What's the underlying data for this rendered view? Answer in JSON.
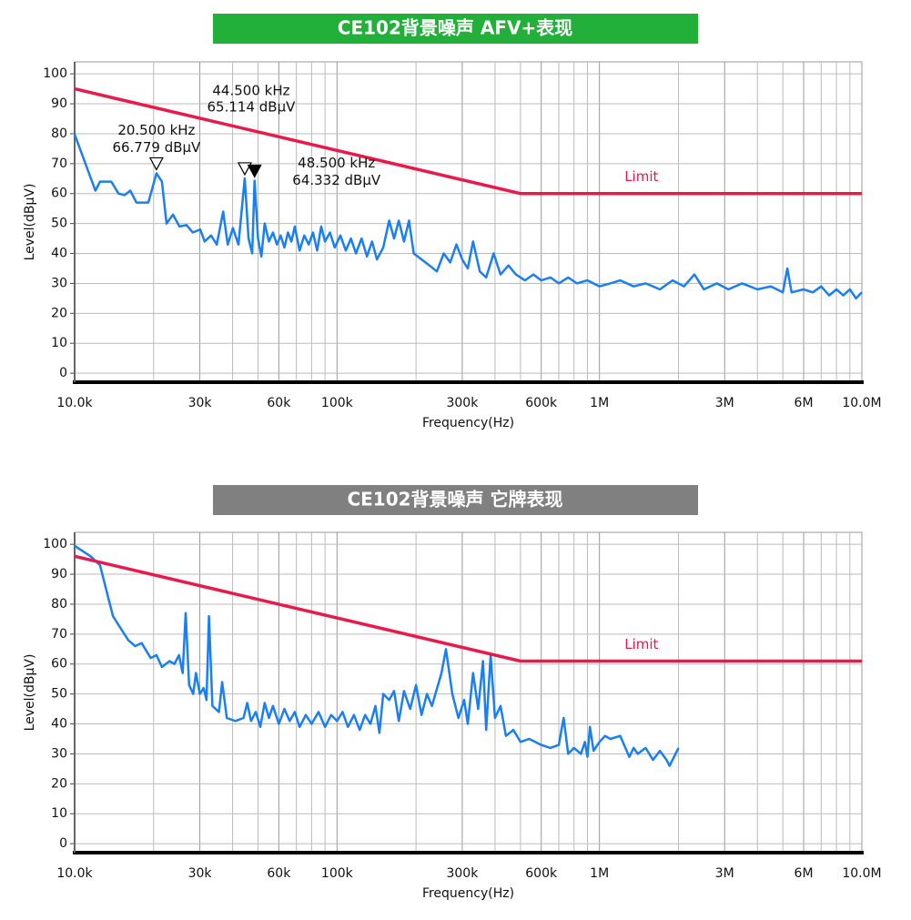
{
  "chart_data": [
    {
      "type": "line",
      "title": "CE102背景噪声 AFV+表现",
      "title_color": "#22b03a",
      "x_label": "Frequency(Hz)",
      "y_label": "Level(dBµV)",
      "log_x": true,
      "grid": true,
      "xlim": [
        10000,
        10000000
      ],
      "ylim": [
        -3,
        104
      ],
      "xticks": [
        {
          "value": 10000,
          "label": "10.0k"
        },
        {
          "value": 30000,
          "label": "30k"
        },
        {
          "value": 60000,
          "label": "60k"
        },
        {
          "value": 100000,
          "label": "100k"
        },
        {
          "value": 300000,
          "label": "300k"
        },
        {
          "value": 600000,
          "label": "600k"
        },
        {
          "value": 1000000,
          "label": "1M"
        },
        {
          "value": 3000000,
          "label": "3M"
        },
        {
          "value": 6000000,
          "label": "6M"
        },
        {
          "value": 10000000,
          "label": "10.0M"
        }
      ],
      "xminor_ticks": [
        20000,
        40000,
        50000,
        70000,
        80000,
        90000,
        200000,
        400000,
        500000,
        700000,
        800000,
        900000,
        2000000,
        4000000,
        5000000,
        7000000,
        8000000,
        9000000
      ],
      "yticks": [
        0,
        10,
        20,
        30,
        40,
        50,
        60,
        70,
        80,
        90,
        100
      ],
      "series": [
        {
          "color": "#1a7ff0",
          "x": [
            10000,
            12000,
            12500,
            13800,
            14700,
            15500,
            16300,
            17200,
            19100,
            20500,
            21500,
            22400,
            23700,
            25100,
            26700,
            28200,
            30100,
            31300,
            33100,
            34800,
            36800,
            38300,
            40100,
            42100,
            44500,
            46000,
            47500,
            48500,
            50000,
            51500,
            53000,
            55000,
            57000,
            59000,
            61000,
            63000,
            65000,
            67000,
            69000,
            72000,
            75000,
            78000,
            81000,
            84000,
            87000,
            90000,
            94000,
            98000,
            103000,
            108000,
            113000,
            118000,
            124000,
            130000,
            136000,
            142000,
            150000,
            158000,
            165000,
            172000,
            180000,
            188000,
            196000,
            210000,
            225000,
            240000,
            255000,
            270000,
            285000,
            300000,
            315000,
            330000,
            350000,
            370000,
            395000,
            420000,
            450000,
            480000,
            520000,
            560000,
            600000,
            650000,
            700000,
            760000,
            820000,
            900000,
            1000000,
            1100000,
            1200000,
            1350000,
            1500000,
            1700000,
            1900000,
            2100000,
            2300000,
            2500000,
            2800000,
            3100000,
            3500000,
            4000000,
            4500000,
            5000000,
            5200000,
            5400000,
            6000000,
            6500000,
            7000000,
            7500000,
            8000000,
            8500000,
            9000000,
            9500000,
            10000000
          ],
          "values": [
            79.8,
            61,
            64,
            64,
            60,
            59.5,
            61,
            57,
            57,
            66.8,
            64,
            50,
            53,
            49,
            49.5,
            47,
            48,
            44,
            46,
            43,
            54,
            43,
            48.5,
            43,
            65.1,
            45,
            40,
            64.3,
            45,
            39,
            50,
            44,
            47,
            43,
            46,
            42,
            47,
            44,
            49,
            41,
            46,
            43,
            47,
            41,
            49,
            44,
            47,
            42,
            46,
            41,
            45,
            40,
            45,
            39,
            44,
            38,
            42,
            51,
            45,
            51,
            44,
            51,
            40,
            38,
            36,
            34,
            40,
            37,
            43,
            38,
            35,
            44,
            34,
            32,
            40,
            33,
            36,
            33,
            31,
            33,
            31,
            32,
            30,
            32,
            30,
            31,
            29,
            30,
            31,
            29,
            30,
            28,
            31,
            29,
            33,
            28,
            30,
            28,
            30,
            28,
            29,
            27,
            35,
            27,
            28,
            27,
            29,
            26,
            28,
            26,
            28,
            25,
            27
          ]
        },
        {
          "name": "Limit",
          "color": "#e8194b",
          "x": [
            10000,
            500000,
            10000000
          ],
          "values": [
            95,
            60,
            60
          ]
        }
      ],
      "markers": [
        {
          "x": 20500,
          "value": 66.779,
          "freq_label": "20.500 kHz",
          "level_label": "66.779 dBµV",
          "filled": false
        },
        {
          "x": 44500,
          "value": 65.114,
          "freq_label": "44.500 kHz",
          "level_label": "65.114 dBµV",
          "filled": false
        },
        {
          "x": 48500,
          "value": 64.332,
          "freq_label": "48.500 kHz",
          "level_label": "64.332 dBµV",
          "filled": true
        }
      ]
    },
    {
      "type": "line",
      "title": "CE102背景噪声 它牌表现",
      "title_color": "#808080",
      "x_label": "Frequency(Hz)",
      "y_label": "Level(dBµV)",
      "log_x": true,
      "grid": true,
      "xlim": [
        10000,
        10000000
      ],
      "ylim": [
        -3,
        104
      ],
      "xticks": [
        {
          "value": 10000,
          "label": "10.0k"
        },
        {
          "value": 30000,
          "label": "30k"
        },
        {
          "value": 60000,
          "label": "60k"
        },
        {
          "value": 100000,
          "label": "100k"
        },
        {
          "value": 300000,
          "label": "300k"
        },
        {
          "value": 600000,
          "label": "600k"
        },
        {
          "value": 1000000,
          "label": "1M"
        },
        {
          "value": 3000000,
          "label": "3M"
        },
        {
          "value": 6000000,
          "label": "6M"
        },
        {
          "value": 10000000,
          "label": "10.0M"
        }
      ],
      "xminor_ticks": [
        20000,
        40000,
        50000,
        70000,
        80000,
        90000,
        200000,
        400000,
        500000,
        700000,
        800000,
        900000,
        2000000,
        4000000,
        5000000,
        7000000,
        8000000,
        9000000
      ],
      "yticks": [
        0,
        10,
        20,
        30,
        40,
        50,
        60,
        70,
        80,
        90,
        100
      ],
      "series": [
        {
          "color": "#1a7ff0",
          "x": [
            10000,
            11500,
            12500,
            14000,
            16000,
            17000,
            18000,
            19500,
            20500,
            21500,
            23000,
            24000,
            25000,
            25800,
            26500,
            27300,
            28300,
            29000,
            30000,
            31000,
            31800,
            32500,
            33500,
            35500,
            36500,
            38000,
            41000,
            44000,
            45500,
            47000,
            49000,
            51000,
            53000,
            55000,
            57000,
            60000,
            63000,
            66000,
            69000,
            72000,
            76000,
            80000,
            85000,
            90000,
            95000,
            100000,
            105000,
            110000,
            116000,
            122000,
            128000,
            134000,
            140000,
            145000,
            150000,
            158000,
            165000,
            172000,
            180000,
            190000,
            200000,
            210000,
            220000,
            230000,
            250000,
            260000,
            275000,
            290000,
            305000,
            315000,
            330000,
            345000,
            360000,
            370000,
            385000,
            400000,
            420000,
            440000,
            470000,
            500000,
            540000,
            600000,
            650000,
            700000,
            730000,
            760000,
            800000,
            850000,
            880000,
            900000,
            920000,
            950000,
            1000000,
            1050000,
            1100000,
            1200000,
            1300000,
            1350000,
            1400000,
            1500000,
            1600000,
            1700000,
            1800000,
            1850000,
            1950000,
            2000000
          ],
          "values": [
            99.5,
            96,
            93,
            76,
            68,
            66,
            67,
            62,
            63,
            59,
            61,
            60,
            63,
            57,
            77,
            53,
            50,
            57,
            50,
            52,
            48,
            76,
            46,
            44,
            54,
            42,
            41,
            42,
            47,
            41,
            44,
            39,
            47,
            42,
            46,
            40,
            45,
            41,
            44,
            39,
            43,
            40,
            44,
            39,
            43,
            41,
            44,
            39,
            43,
            38,
            43,
            40,
            46,
            37,
            50,
            48,
            51,
            41,
            51,
            45,
            53,
            43,
            50,
            46,
            57,
            65,
            50,
            42,
            48,
            40,
            57,
            45,
            61,
            38,
            63,
            42,
            46,
            36,
            38,
            34,
            35,
            33,
            32,
            33,
            42,
            30,
            32,
            30,
            34,
            29,
            39,
            31,
            34,
            36,
            35,
            36,
            29,
            32,
            30,
            32,
            28,
            31,
            28,
            26,
            30,
            32
          ]
        },
        {
          "name": "Limit",
          "color": "#e8194b",
          "x": [
            10000,
            500000,
            10000000
          ],
          "values": [
            96,
            61,
            61
          ]
        }
      ]
    }
  ]
}
